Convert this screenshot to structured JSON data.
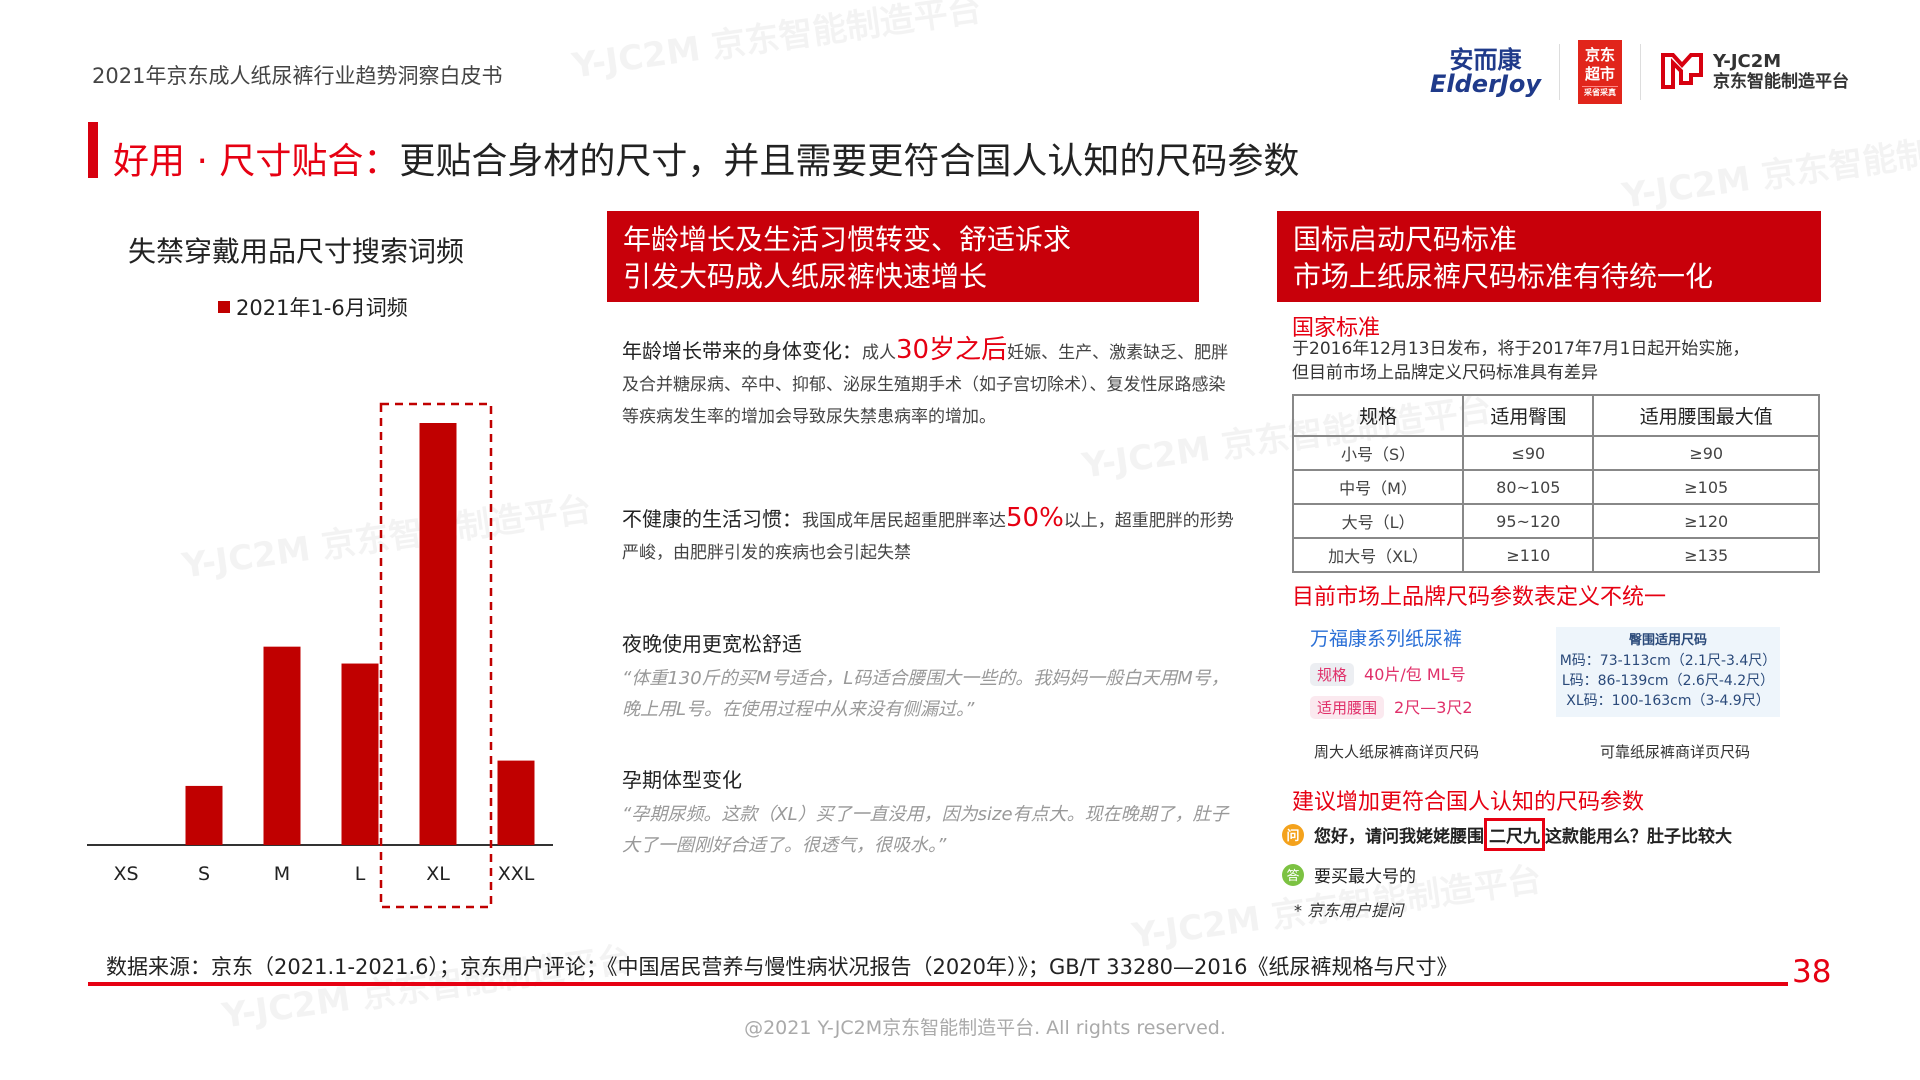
{
  "header": {
    "doc_title": "2021年京东成人纸尿裤行业趋势洞察白皮书",
    "logos": {
      "elderjoy_cn": "安而康",
      "elderjoy_en": "ElderJoy",
      "jd_super": "京东超市",
      "jd_super_sub": "采省采真",
      "yjc2m": "Y-JC2M",
      "yjc2m_cn": "京东智能制造平台"
    }
  },
  "watermark": "Y-JC2M 京东智能制造平台",
  "title": {
    "highlight": "好用 · 尺寸贴合：",
    "text": "更贴合身材的尺寸，并且需要更符合国人认知的尺码参数"
  },
  "chart_data": {
    "type": "bar",
    "title": "失禁穿戴用品尺寸搜索词频",
    "legend": "2021年1-6月词频",
    "legend_position": "top",
    "categories": [
      "XS",
      "S",
      "M",
      "L",
      "XL",
      "XXL"
    ],
    "series": [
      {
        "name": "2021年1-6月词频",
        "values": [
          0,
          14,
          47,
          43,
          100,
          20
        ]
      }
    ],
    "highlight_category": "XL",
    "color": "#c00000",
    "ylim": [
      0,
      100
    ],
    "grid": false,
    "y_axis_shown": false
  },
  "middle": {
    "box_lines": [
      "年龄增长及生活习惯转变、舒适诉求",
      "引发大码成人纸尿裤快速增长"
    ],
    "s1": {
      "head": "年龄增长带来的身体变化：",
      "pre": "成人",
      "em": "30岁之后",
      "post": "妊娠、生产、激素缺乏、肥胖及合并糖尿病、卒中、抑郁、泌尿生殖期手术（如子宫切除术）、复发性尿路感染等疾病发生率的增加会导致尿失禁患病率的增加。"
    },
    "s2": {
      "head": "不健康的生活习惯：",
      "pre": "我国成年居民超重肥胖率达",
      "em": "50%",
      "post": "以上，超重肥胖的形势严峻，由肥胖引发的疾病也会引起失禁"
    },
    "s3": {
      "head": "夜晚使用更宽松舒适",
      "quote": "“体重130斤的买M号适合，L码适合腰围大一些的。我妈妈一般白天用M号，晚上用L号。在使用过程中从来没有侧漏过。”"
    },
    "s4": {
      "head": "孕期体型变化",
      "quote": "“孕期尿频。这款（XL）买了一直没用，因为size有点大。现在晚期了，肚子大了一圈刚好合适了。很透气，很吸水。”"
    }
  },
  "right": {
    "box_lines": [
      "国标启动尺码标准",
      "市场上纸尿裤尺码标准有待统一化"
    ],
    "std_head": "国家标准",
    "std_text": [
      "于2016年12月13日发布，将于2017年7月1日起开始实施，",
      "但目前市场上品牌定义尺码标准具有差异"
    ],
    "table": {
      "headers": [
        "规格",
        "适用臀围",
        "适用腰围最大值"
      ],
      "rows": [
        [
          "小号（S）",
          "≤90",
          "≥90"
        ],
        [
          "中号（M）",
          "80~105",
          "≥105"
        ],
        [
          "大号（L）",
          "95~120",
          "≥120"
        ],
        [
          "加大号（XL）",
          "≥110",
          "≥135"
        ]
      ]
    },
    "brand_head": "目前市场上品牌尺码参数表定义不统一",
    "brand1": {
      "name": "万福康系列纸尿裤",
      "tag1": "规格",
      "val1": "40片/包 ML号",
      "tag2": "适用腰围",
      "val2": "2尺—3尺2",
      "caption": "周大人纸尿裤商详页尺码"
    },
    "brand2": {
      "title": "臀围适用尺码",
      "lines": [
        "M码：73-113cm（2.1尺-3.4尺）",
        "L码：86-139cm（2.6尺-4.2尺）",
        "XL码：100-163cm（3-4.9尺）"
      ],
      "caption": "可靠纸尿裤商详页尺码"
    },
    "suggest_head": "建议增加更符合国人认知的尺码参数",
    "q_icon": "问",
    "q_pre": "您好，请问我姥姥腰围",
    "q_box": "二尺九",
    "q_post": "这款能用么？肚子比较大",
    "a_icon": "答",
    "a_text": "要买最大号的",
    "note": "* 京东用户提问"
  },
  "footer": {
    "source": "数据来源：京东（2021.1-2021.6）；京东用户评论；《中国居民营养与慢性病状况报告（2020年）》；GB/T 33280—2016《纸尿裤规格与尺寸》",
    "page": "38",
    "copyright": "@2021 Y-JC2M京东智能制造平台. All rights reserved."
  }
}
